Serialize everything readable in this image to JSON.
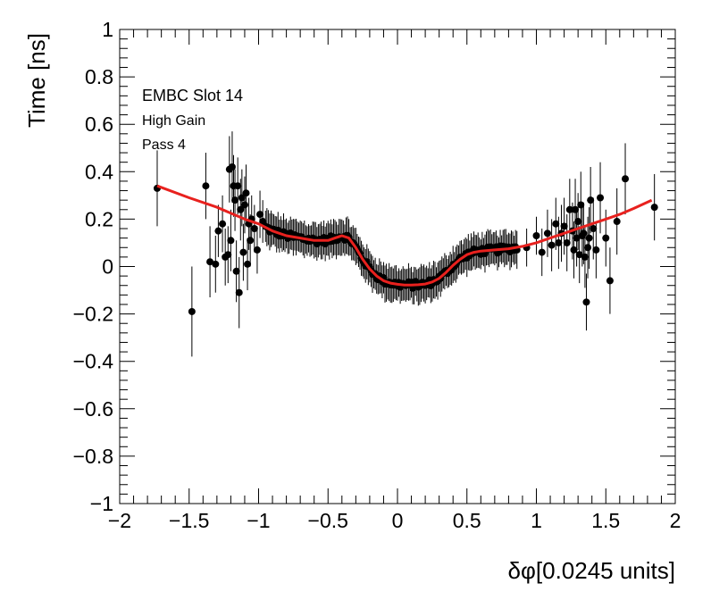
{
  "chart_data": {
    "type": "scatter",
    "xlabel": "δφ[0.0245 units]",
    "ylabel": "Time [ns]",
    "xlim": [
      -2,
      2
    ],
    "ylim": [
      -1,
      1
    ],
    "x_major_ticks": [
      -2,
      -1.5,
      -1,
      -0.5,
      0,
      0.5,
      1,
      1.5,
      2
    ],
    "x_tick_labels": [
      "−2",
      "−1.5",
      "−1",
      "−0.5",
      "0",
      "0.5",
      "1",
      "1.5",
      "2"
    ],
    "y_major_ticks": [
      -1,
      -0.8,
      -0.6,
      -0.4,
      -0.2,
      0,
      0.2,
      0.4,
      0.6,
      0.8,
      1
    ],
    "y_tick_labels": [
      "−1",
      "−0.8",
      "−0.6",
      "−0.4",
      "−0.2",
      "0",
      "0.2",
      "0.4",
      "0.6",
      "0.8",
      "1"
    ],
    "annotations": [
      "EMBC Slot 14",
      "High Gain",
      "Pass 4"
    ],
    "fit_color": "#e8211e",
    "marker_color": "#000000",
    "sparse_points": [
      {
        "x": -1.73,
        "y": 0.33,
        "err": 0.16
      },
      {
        "x": -1.48,
        "y": -0.19,
        "err": 0.19
      },
      {
        "x": -1.38,
        "y": 0.34,
        "err": 0.14
      },
      {
        "x": -1.35,
        "y": 0.02,
        "err": 0.15
      },
      {
        "x": -1.31,
        "y": 0.01,
        "err": 0.12
      },
      {
        "x": -1.29,
        "y": 0.15,
        "err": 0.11
      },
      {
        "x": -1.26,
        "y": 0.18,
        "err": 0.12
      },
      {
        "x": -1.24,
        "y": 0.04,
        "err": 0.12
      },
      {
        "x": -1.22,
        "y": 0.05,
        "err": 0.12
      },
      {
        "x": -1.21,
        "y": 0.41,
        "err": 0.14
      },
      {
        "x": -1.2,
        "y": 0.11,
        "err": 0.13
      },
      {
        "x": -1.19,
        "y": 0.42,
        "err": 0.15
      },
      {
        "x": -1.18,
        "y": 0.34,
        "err": 0.13
      },
      {
        "x": -1.17,
        "y": 0.28,
        "err": 0.13
      },
      {
        "x": -1.16,
        "y": -0.02,
        "err": 0.13
      },
      {
        "x": -1.15,
        "y": 0.34,
        "err": 0.12
      },
      {
        "x": -1.14,
        "y": -0.11,
        "err": 0.15
      },
      {
        "x": -1.13,
        "y": 0.24,
        "err": 0.13
      },
      {
        "x": -1.12,
        "y": 0.29,
        "err": 0.12
      },
      {
        "x": -1.11,
        "y": 0.06,
        "err": 0.12
      },
      {
        "x": -1.1,
        "y": 0.26,
        "err": 0.12
      },
      {
        "x": -1.09,
        "y": 0.31,
        "err": 0.12
      },
      {
        "x": -1.08,
        "y": 0.01,
        "err": 0.11
      },
      {
        "x": -1.07,
        "y": 0.18,
        "err": 0.11
      },
      {
        "x": -1.06,
        "y": 0.11,
        "err": 0.11
      },
      {
        "x": -1.05,
        "y": 0.2,
        "err": 0.1
      },
      {
        "x": -1.03,
        "y": 0.16,
        "err": 0.1
      },
      {
        "x": -1.01,
        "y": 0.07,
        "err": 0.1
      },
      {
        "x": -0.99,
        "y": 0.22,
        "err": 0.1
      },
      {
        "x": -0.97,
        "y": 0.19,
        "err": 0.09
      },
      {
        "x": 0.86,
        "y": 0.07,
        "err": 0.08
      },
      {
        "x": 0.93,
        "y": 0.08,
        "err": 0.08
      },
      {
        "x": 1.0,
        "y": 0.13,
        "err": 0.08
      },
      {
        "x": 1.04,
        "y": 0.06,
        "err": 0.1
      },
      {
        "x": 1.08,
        "y": 0.14,
        "err": 0.1
      },
      {
        "x": 1.11,
        "y": 0.09,
        "err": 0.11
      },
      {
        "x": 1.14,
        "y": 0.18,
        "err": 0.11
      },
      {
        "x": 1.16,
        "y": 0.1,
        "err": 0.11
      },
      {
        "x": 1.18,
        "y": 0.14,
        "err": 0.12
      },
      {
        "x": 1.2,
        "y": 0.17,
        "err": 0.12
      },
      {
        "x": 1.22,
        "y": 0.1,
        "err": 0.12
      },
      {
        "x": 1.24,
        "y": 0.24,
        "err": 0.13
      },
      {
        "x": 1.26,
        "y": 0.15,
        "err": 0.12
      },
      {
        "x": 1.27,
        "y": 0.07,
        "err": 0.12
      },
      {
        "x": 1.28,
        "y": 0.24,
        "err": 0.13
      },
      {
        "x": 1.29,
        "y": 0.12,
        "err": 0.12
      },
      {
        "x": 1.3,
        "y": 0.19,
        "err": 0.12
      },
      {
        "x": 1.31,
        "y": 0.05,
        "err": 0.12
      },
      {
        "x": 1.32,
        "y": 0.26,
        "err": 0.14
      },
      {
        "x": 1.33,
        "y": 0.13,
        "err": 0.13
      },
      {
        "x": 1.34,
        "y": 0.14,
        "err": 0.13
      },
      {
        "x": 1.35,
        "y": 0.04,
        "err": 0.13
      },
      {
        "x": 1.36,
        "y": -0.15,
        "err": 0.12
      },
      {
        "x": 1.37,
        "y": 0.08,
        "err": 0.13
      },
      {
        "x": 1.38,
        "y": 0.12,
        "err": 0.13
      },
      {
        "x": 1.39,
        "y": 0.28,
        "err": 0.14
      },
      {
        "x": 1.41,
        "y": 0.16,
        "err": 0.13
      },
      {
        "x": 1.43,
        "y": 0.07,
        "err": 0.12
      },
      {
        "x": 1.46,
        "y": 0.29,
        "err": 0.15
      },
      {
        "x": 1.5,
        "y": 0.12,
        "err": 0.12
      },
      {
        "x": 1.53,
        "y": -0.06,
        "err": 0.14
      },
      {
        "x": 1.58,
        "y": 0.19,
        "err": 0.14
      },
      {
        "x": 1.64,
        "y": 0.37,
        "err": 0.15
      },
      {
        "x": 1.85,
        "y": 0.25,
        "err": 0.14
      }
    ],
    "dense_band": {
      "x_start": -0.95,
      "x_end": 0.85,
      "step": 0.01,
      "err": 0.07,
      "jitter": 0.015
    },
    "fit_curve": {
      "x": [
        -1.73,
        -1.5,
        -1.3,
        -1.1,
        -1.0,
        -0.9,
        -0.8,
        -0.7,
        -0.6,
        -0.5,
        -0.45,
        -0.4,
        -0.35,
        -0.3,
        -0.25,
        -0.2,
        -0.15,
        -0.1,
        -0.05,
        0.0,
        0.05,
        0.1,
        0.15,
        0.2,
        0.25,
        0.3,
        0.35,
        0.4,
        0.45,
        0.5,
        0.55,
        0.6,
        0.7,
        0.8,
        0.9,
        1.0,
        1.1,
        1.2,
        1.3,
        1.4,
        1.5,
        1.6,
        1.7,
        1.83
      ],
      "y": [
        0.34,
        0.29,
        0.25,
        0.2,
        0.18,
        0.15,
        0.13,
        0.12,
        0.11,
        0.11,
        0.12,
        0.13,
        0.12,
        0.08,
        0.03,
        -0.01,
        -0.04,
        -0.06,
        -0.07,
        -0.075,
        -0.078,
        -0.078,
        -0.077,
        -0.074,
        -0.065,
        -0.05,
        -0.025,
        0.005,
        0.03,
        0.05,
        0.06,
        0.065,
        0.07,
        0.075,
        0.085,
        0.1,
        0.12,
        0.14,
        0.16,
        0.18,
        0.2,
        0.22,
        0.245,
        0.28
      ]
    }
  }
}
